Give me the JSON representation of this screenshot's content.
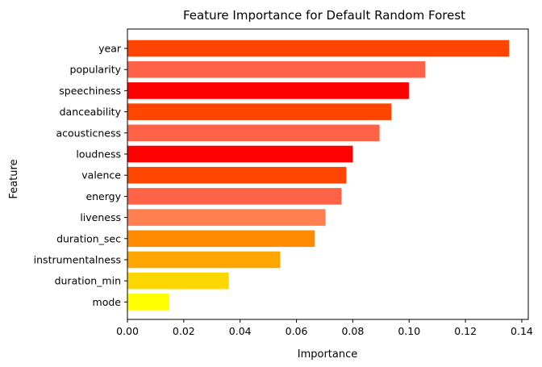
{
  "chart_data": {
    "type": "bar",
    "orientation": "horizontal",
    "title": "Feature Importance for Default Random Forest",
    "xlabel": "Importance",
    "ylabel": "Feature",
    "categories": [
      "year",
      "popularity",
      "speechiness",
      "danceability",
      "acousticness",
      "loudness",
      "valence",
      "energy",
      "liveness",
      "duration_sec",
      "instrumentalness",
      "duration_min",
      "mode"
    ],
    "values": [
      0.1355,
      0.1057,
      0.0999,
      0.0937,
      0.0895,
      0.08,
      0.0777,
      0.076,
      0.0703,
      0.0665,
      0.0542,
      0.036,
      0.0148
    ],
    "colors": [
      "#ff4500",
      "#ff6347",
      "#ff0000",
      "#ff4500",
      "#ff6347",
      "#ff0000",
      "#ff4500",
      "#ff6347",
      "#ff7f50",
      "#ff8c00",
      "#ffa500",
      "#ffd700",
      "#ffff00"
    ],
    "xlim": [
      0,
      0.1423
    ],
    "xticks": [
      0.0,
      0.02,
      0.04,
      0.06,
      0.08,
      0.1,
      0.12,
      0.14
    ],
    "xtick_labels": [
      "0.00",
      "0.02",
      "0.04",
      "0.06",
      "0.08",
      "0.10",
      "0.12",
      "0.14"
    ],
    "grid": false,
    "legend": "none"
  }
}
